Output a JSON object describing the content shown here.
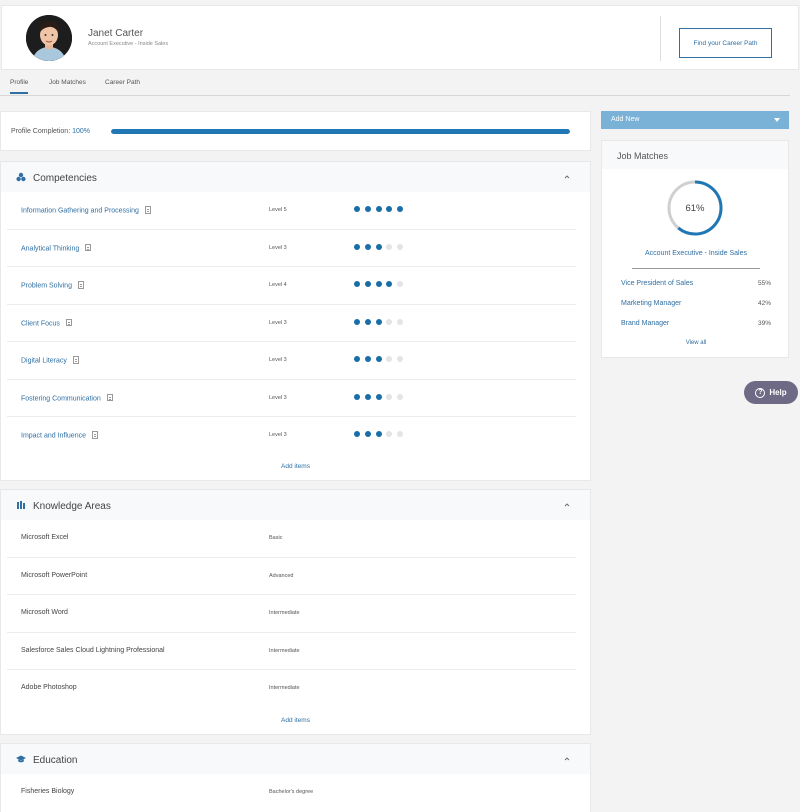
{
  "profile": {
    "name": "Janet Carter",
    "title": "Account Executive - Inside Sales",
    "career_button": "Find your Career Path"
  },
  "tabs": [
    "Profile",
    "Job Matches",
    "Career Path"
  ],
  "completion": {
    "label": "Profile Completion:",
    "value_text": "100%",
    "value": 1.0
  },
  "competencies": {
    "title": "Competencies",
    "items": [
      {
        "name": "Information Gathering and Processing",
        "level": "Level 5",
        "filled": 5,
        "total": 5
      },
      {
        "name": "Analytical Thinking",
        "level": "Level 3",
        "filled": 3,
        "total": 5
      },
      {
        "name": "Problem Solving",
        "level": "Level 4",
        "filled": 4,
        "total": 5
      },
      {
        "name": "Client Focus",
        "level": "Level 3",
        "filled": 3,
        "total": 5
      },
      {
        "name": "Digital Literacy",
        "level": "Level 3",
        "filled": 3,
        "total": 5
      },
      {
        "name": "Fostering Communication",
        "level": "Level 3",
        "filled": 3,
        "total": 5
      },
      {
        "name": "Impact and Influence",
        "level": "Level 3",
        "filled": 3,
        "total": 5
      }
    ],
    "add_label": "Add items"
  },
  "knowledge": {
    "title": "Knowledge Areas",
    "items": [
      {
        "name": "Microsoft Excel",
        "level": "Basic"
      },
      {
        "name": "Microsoft PowerPoint",
        "level": "Advanced"
      },
      {
        "name": "Microsoft Word",
        "level": "Intermediate"
      },
      {
        "name": "Salesforce Sales Cloud Lightning Professional",
        "level": "Intermediate"
      },
      {
        "name": "Adobe Photoshop",
        "level": "Intermediate"
      }
    ],
    "add_label": "Add items"
  },
  "education": {
    "title": "Education",
    "items": [
      {
        "name": "Fisheries Biology",
        "level": "Bachelor's degree"
      }
    ]
  },
  "add_new": {
    "label": "Add New"
  },
  "job_matches": {
    "title": "Job Matches",
    "main": {
      "percent_text": "61%",
      "percent": 61,
      "title": "Account Executive - Inside Sales"
    },
    "items": [
      {
        "title": "Vice President of Sales",
        "percent": "55%"
      },
      {
        "title": "Marketing Manager",
        "percent": "42%"
      },
      {
        "title": "Brand Manager",
        "percent": "39%"
      }
    ],
    "view_all": "View all"
  },
  "help": {
    "label": "Help"
  },
  "colors": {
    "accent": "#1f78b4",
    "link": "#2f6fa3",
    "add_new_bg": "#7ab1d6",
    "help_bg": "#6e6a85"
  },
  "icons": {
    "competencies": "competencies-icon",
    "knowledge": "books-icon",
    "education": "graduation-cap-icon",
    "collapse": "chevron-up-icon",
    "document": "document-icon",
    "dropdown": "caret-down-icon",
    "help": "question-circle-icon"
  }
}
